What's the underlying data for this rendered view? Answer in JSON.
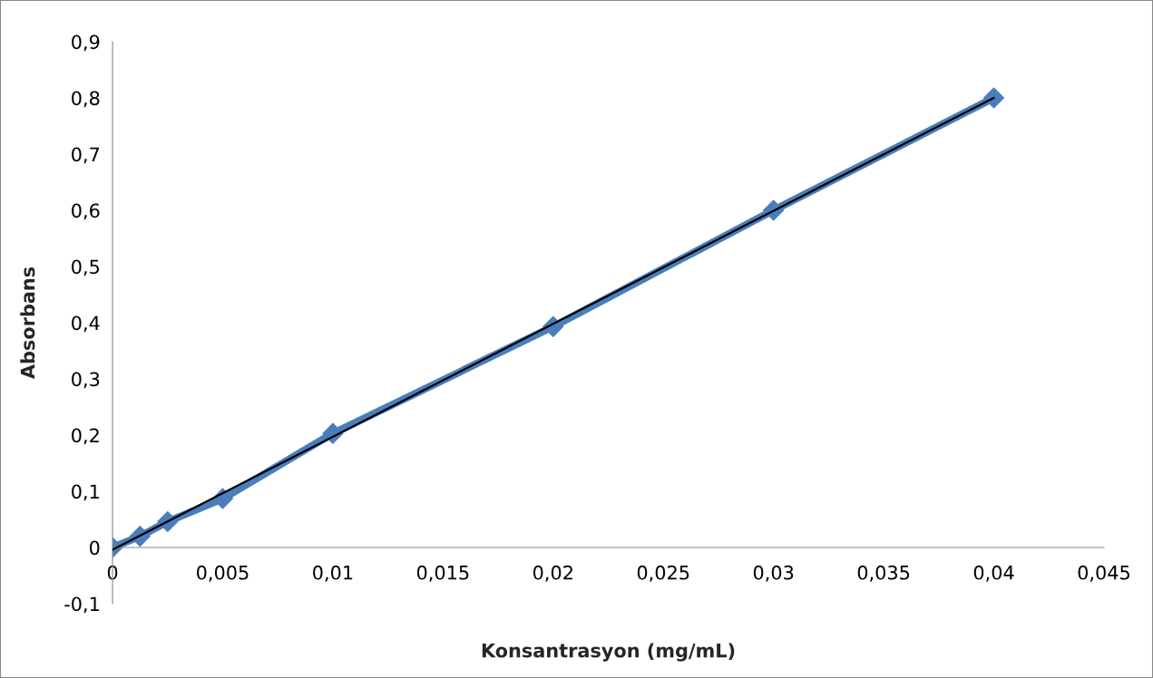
{
  "chart_data": {
    "type": "line",
    "xlabel": "Konsantrasyon (mg/mL)",
    "ylabel": "Absorbans",
    "x": [
      0,
      0.00125,
      0.0025,
      0.005,
      0.01,
      0.02,
      0.03,
      0.04
    ],
    "series": [
      {
        "color": "#4a7ebb",
        "marker": "diamond",
        "values": [
          0,
          0.02,
          0.046,
          0.087,
          0.203,
          0.393,
          0.6,
          0.8
        ]
      },
      {
        "color": "#000000",
        "marker": "none",
        "x": [
          0,
          0.04
        ],
        "values": [
          -0.004,
          0.8
        ]
      }
    ],
    "xlim": [
      0,
      0.045
    ],
    "ylim": [
      -0.1,
      0.9
    ],
    "xticks": [
      {
        "value": 0,
        "label": "0"
      },
      {
        "value": 0.005,
        "label": "0,005"
      },
      {
        "value": 0.01,
        "label": "0,01"
      },
      {
        "value": 0.015,
        "label": "0,015"
      },
      {
        "value": 0.02,
        "label": "0,02"
      },
      {
        "value": 0.025,
        "label": "0,025"
      },
      {
        "value": 0.03,
        "label": "0,03"
      },
      {
        "value": 0.035,
        "label": "0,035"
      },
      {
        "value": 0.04,
        "label": "0,04"
      },
      {
        "value": 0.045,
        "label": "0,045"
      }
    ],
    "yticks": [
      {
        "value": -0.1,
        "label": "-0,1"
      },
      {
        "value": 0,
        "label": "0"
      },
      {
        "value": 0.1,
        "label": "0,1"
      },
      {
        "value": 0.2,
        "label": "0,2"
      },
      {
        "value": 0.3,
        "label": "0,3"
      },
      {
        "value": 0.4,
        "label": "0,4"
      },
      {
        "value": 0.5,
        "label": "0,5"
      },
      {
        "value": 0.6,
        "label": "0,6"
      },
      {
        "value": 0.7,
        "label": "0,7"
      },
      {
        "value": 0.8,
        "label": "0,8"
      },
      {
        "value": 0.9,
        "label": "0,9"
      }
    ],
    "grid": false,
    "legend": false
  }
}
